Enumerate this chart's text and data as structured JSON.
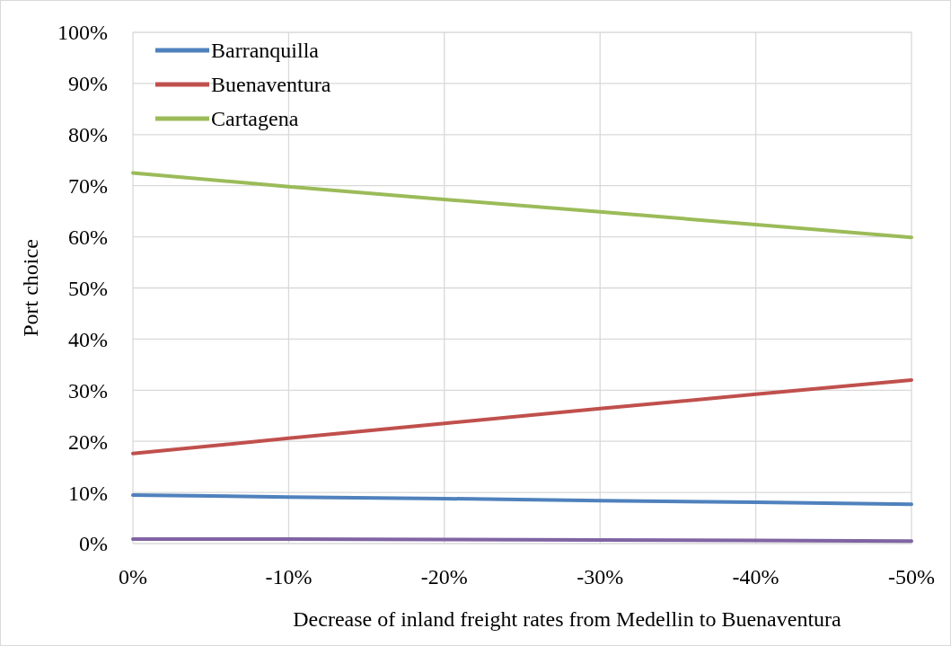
{
  "chart_data": {
    "type": "line",
    "xlabel": "Decrease of inland freight rates from Medellin to Buenaventura",
    "ylabel": "Port choice",
    "categories": [
      "0%",
      "-10%",
      "-20%",
      "-30%",
      "-40%",
      "-50%"
    ],
    "series": [
      {
        "name": "Barranquilla",
        "color": "#4f81bd",
        "values": [
          9.5,
          9.1,
          8.8,
          8.4,
          8.1,
          7.7
        ]
      },
      {
        "name": "Buenaventura",
        "color": "#c0504d",
        "values": [
          17.6,
          20.6,
          23.5,
          26.4,
          29.2,
          32.0
        ]
      },
      {
        "name": "Cartagena",
        "color": "#9bbb59",
        "values": [
          72.5,
          69.8,
          67.3,
          64.9,
          62.4,
          59.9
        ]
      },
      {
        "color": "#8064a2",
        "values": [
          0.9,
          0.9,
          0.8,
          0.7,
          0.6,
          0.5
        ]
      }
    ],
    "ylim": [
      0,
      100
    ],
    "yticks": [
      {
        "value": 0,
        "label": "0%"
      },
      {
        "value": 10,
        "label": "10%"
      },
      {
        "value": 20,
        "label": "20%"
      },
      {
        "value": 30,
        "label": "30%"
      },
      {
        "value": 40,
        "label": "40%"
      },
      {
        "value": 50,
        "label": "50%"
      },
      {
        "value": 60,
        "label": "60%"
      },
      {
        "value": 70,
        "label": "70%"
      },
      {
        "value": 80,
        "label": "80%"
      },
      {
        "value": 90,
        "label": "90%"
      },
      {
        "value": 100,
        "label": "100%"
      }
    ],
    "grid": true,
    "legend": "top left",
    "marker": "none",
    "line_style": "solid"
  }
}
